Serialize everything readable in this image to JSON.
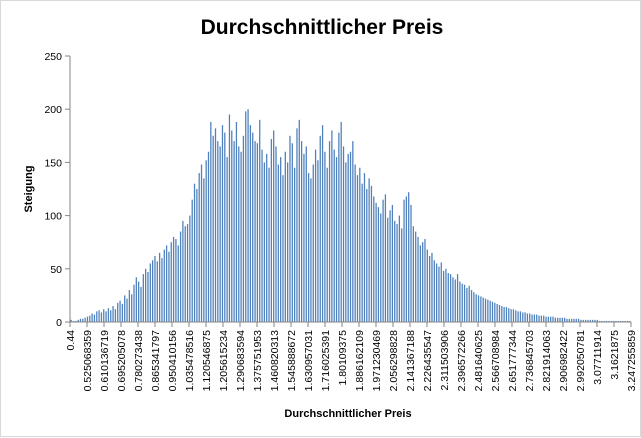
{
  "chart_data": {
    "type": "bar",
    "title": "Durchschnittlicher Preis",
    "xlabel": "Durchschnittlicher Preis",
    "ylabel": "Steigung",
    "ylim": [
      0,
      250
    ],
    "y_ticks": [
      0,
      50,
      100,
      150,
      200,
      250
    ],
    "grid": false,
    "legend": "none",
    "bar_color": "#4f81bd",
    "x_tick_labels": [
      "0.44",
      "0.52506835",
      "0.61013671",
      "0.69520507",
      "0.78027343",
      "0.86534179",
      "0.95041015",
      "1.03547851",
      "1.12054687",
      "1.20561523",
      "1.29068359",
      "1.37575195",
      "1.46082031",
      "1.54588867",
      "1.63095703",
      "1.71602539",
      "1.80109375",
      "1.88616210",
      "1.97123046",
      "2.05629882",
      "2.14136718",
      "2.22643554",
      "2.31150390",
      "2.39657226",
      "2.48164062",
      "2.56670898",
      "2.65177734",
      "2.73684570",
      "2.82191406",
      "2.90698242",
      "2.99205078",
      "3.07711914",
      "3.1621875",
      "3.24725585"
    ],
    "x_tick_text": [
      "0.44",
      "0.525068359",
      "0.610136719",
      "0.695205078",
      "0.780273438",
      "0.865341797",
      "0.950410156",
      "1.035478516",
      "1.120546875",
      "1.205615234",
      "1.290683594",
      "1.375751953",
      "1.460820313",
      "1.545888672",
      "1.630957031",
      "1.716025391",
      "1.80109375",
      "1.886162109",
      "1.971230469",
      "2.056298828",
      "2.141367188",
      "2.226435547",
      "2.311503906",
      "2.396572266",
      "2.481640625",
      "2.566708984",
      "2.651777344",
      "2.736845703",
      "2.821914063",
      "2.906982422",
      "2.992050781",
      "3.07711914",
      "3.1621875",
      "3.247255859"
    ],
    "values": [
      2,
      1,
      1,
      2,
      3,
      3,
      4,
      5,
      6,
      8,
      7,
      10,
      11,
      9,
      12,
      10,
      13,
      11,
      15,
      12,
      18,
      20,
      17,
      25,
      22,
      30,
      26,
      35,
      42,
      38,
      33,
      45,
      50,
      47,
      55,
      58,
      62,
      57,
      65,
      60,
      68,
      72,
      66,
      75,
      80,
      78,
      72,
      85,
      95,
      90,
      92,
      100,
      115,
      130,
      125,
      140,
      148,
      135,
      152,
      160,
      188,
      175,
      182,
      170,
      165,
      185,
      178,
      155,
      195,
      180,
      170,
      188,
      165,
      160,
      175,
      198,
      200,
      185,
      178,
      170,
      168,
      190,
      162,
      150,
      158,
      145,
      172,
      180,
      165,
      148,
      155,
      138,
      160,
      150,
      175,
      168,
      145,
      182,
      190,
      170,
      158,
      165,
      140,
      135,
      148,
      162,
      152,
      175,
      185,
      160,
      145,
      170,
      180,
      162,
      155,
      178,
      188,
      165,
      150,
      158,
      160,
      170,
      148,
      138,
      145,
      130,
      140,
      125,
      135,
      128,
      118,
      112,
      108,
      102,
      115,
      120,
      98,
      105,
      110,
      95,
      92,
      100,
      88,
      115,
      118,
      122,
      110,
      90,
      85,
      80,
      72,
      75,
      78,
      68,
      62,
      65,
      58,
      55,
      52,
      56,
      48,
      50,
      46,
      45,
      42,
      40,
      45,
      38,
      36,
      35,
      32,
      34,
      30,
      28,
      26,
      25,
      24,
      23,
      22,
      21,
      20,
      19,
      18,
      17,
      16,
      15,
      14,
      14,
      13,
      12,
      12,
      11,
      10,
      10,
      9,
      9,
      8,
      8,
      7,
      7,
      7,
      6,
      6,
      6,
      5,
      5,
      5,
      5,
      4,
      4,
      4,
      4,
      4,
      3,
      3,
      3,
      3,
      3,
      3,
      2,
      2,
      2,
      2,
      2,
      2,
      2,
      2,
      1,
      1,
      1,
      1,
      1,
      1,
      1,
      1,
      1,
      1,
      1,
      1,
      1,
      1
    ]
  }
}
